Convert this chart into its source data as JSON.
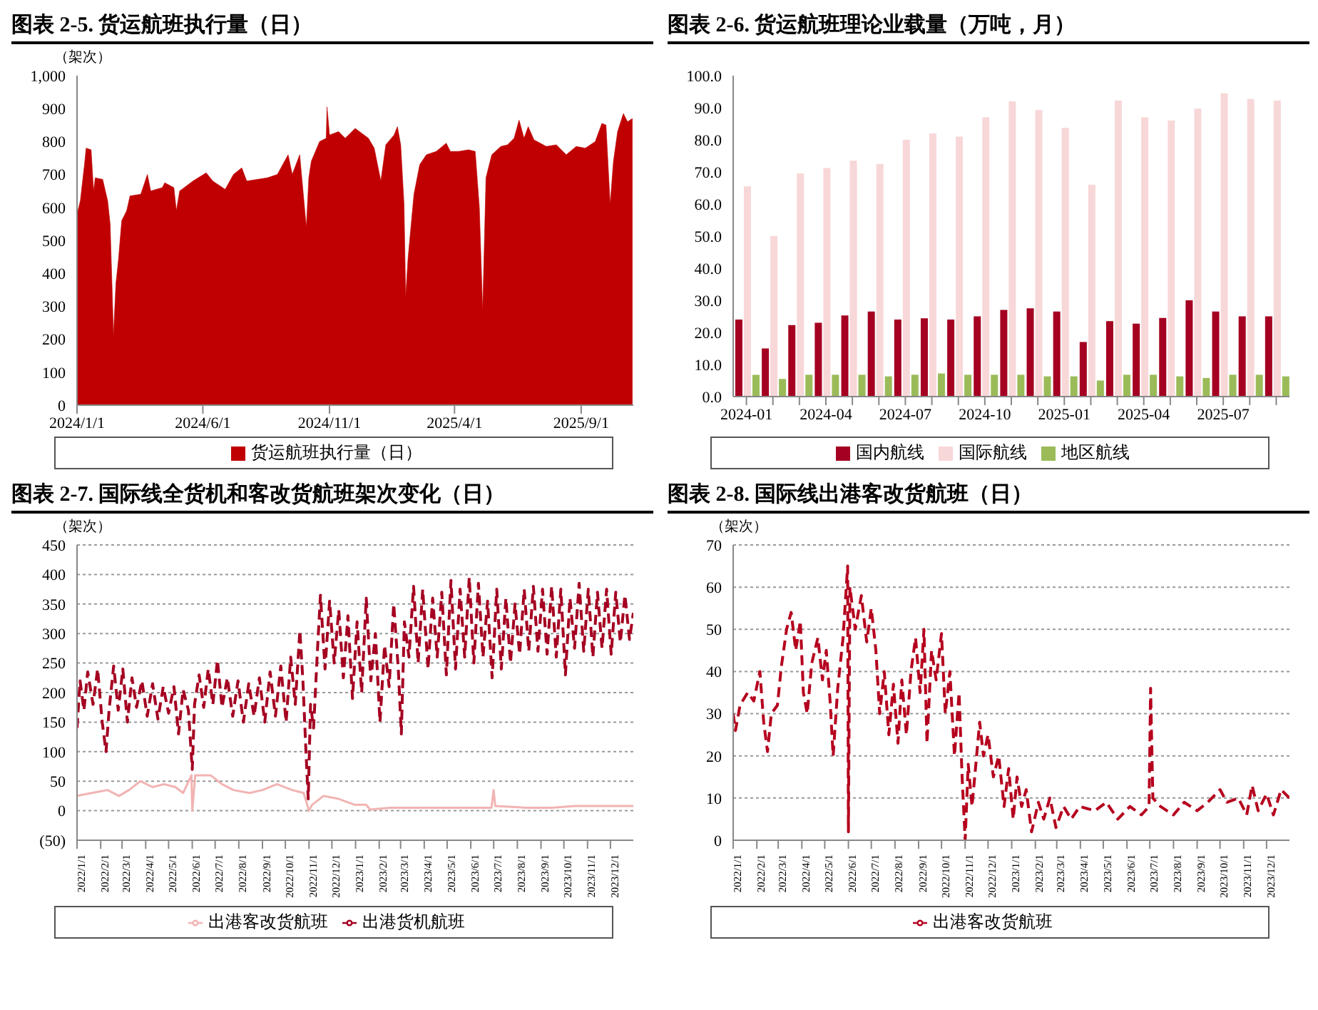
{
  "chart_data": [
    {
      "type": "area",
      "title": "图表 2-5. 货运航班执行量（日）",
      "ylabel": "（架次）",
      "legend": "bottom",
      "x": [
        "2024-01-01",
        "2024-01-05",
        "2024-01-10",
        "2024-01-12",
        "2024-01-18",
        "2024-01-21",
        "2024-01-23",
        "2024-02-01",
        "2024-02-07",
        "2024-02-10",
        "2024-02-13",
        "2024-02-14",
        "2024-02-17",
        "2024-02-20",
        "2024-02-24",
        "2024-03-01",
        "2024-03-05",
        "2024-03-18",
        "2024-03-26",
        "2024-03-30",
        "2024-04-13",
        "2024-04-16",
        "2024-04-27",
        "2024-04-30",
        "2024-05-04",
        "2024-05-20",
        "2024-06-05",
        "2024-06-13",
        "2024-06-28",
        "2024-07-08",
        "2024-07-18",
        "2024-07-24",
        "2024-08-18",
        "2024-08-30",
        "2024-09-12",
        "2024-09-17",
        "2024-09-26",
        "2024-10-04",
        "2024-10-07",
        "2024-10-10",
        "2024-10-20",
        "2024-10-28",
        "2024-10-29",
        "2024-11-01",
        "2024-11-12",
        "2024-11-20",
        "2024-12-02",
        "2024-12-18",
        "2024-12-25",
        "2025-01-02",
        "2025-01-08",
        "2025-01-18",
        "2025-01-22",
        "2025-01-26",
        "2025-01-30",
        "2025-02-01",
        "2025-02-04",
        "2025-02-11",
        "2025-02-18",
        "2025-02-26",
        "2025-03-10",
        "2025-03-22",
        "2025-03-27",
        "2025-04-06",
        "2025-04-18",
        "2025-04-26",
        "2025-05-01",
        "2025-05-05",
        "2025-05-09",
        "2025-05-16",
        "2025-05-27",
        "2025-06-04",
        "2025-06-12",
        "2025-06-18",
        "2025-06-24",
        "2025-06-29",
        "2025-07-06",
        "2025-07-21",
        "2025-08-02",
        "2025-08-14",
        "2025-08-26",
        "2025-09-06",
        "2025-09-18",
        "2025-09-26",
        "2025-10-01",
        "2025-10-06",
        "2025-10-10",
        "2025-10-15",
        "2025-10-22",
        "2025-10-27",
        "2025-11-02"
      ],
      "series": [
        {
          "name": "货运航班执行量（日）",
          "color": "#c00000",
          "values": [
            580,
            620,
            730,
            780,
            775,
            650,
            690,
            685,
            620,
            550,
            300,
            210,
            370,
            440,
            560,
            590,
            635,
            640,
            700,
            650,
            660,
            675,
            660,
            590,
            650,
            680,
            705,
            680,
            655,
            700,
            720,
            680,
            690,
            700,
            760,
            700,
            760,
            540,
            690,
            740,
            800,
            810,
            905,
            820,
            830,
            810,
            840,
            810,
            780,
            680,
            790,
            820,
            845,
            790,
            610,
            330,
            450,
            640,
            730,
            760,
            770,
            795,
            770,
            770,
            775,
            770,
            600,
            285,
            690,
            760,
            785,
            790,
            810,
            865,
            810,
            845,
            805,
            785,
            790,
            760,
            785,
            780,
            800,
            855,
            850,
            610,
            740,
            830,
            885,
            860,
            870
          ]
        }
      ],
      "xlim": [
        "2024-01-01",
        "2025-11-03"
      ],
      "xticks": [
        {
          "value": "2024-01-01",
          "label": "2024/1/1"
        },
        {
          "value": "2024-06-01",
          "label": "2024/6/1"
        },
        {
          "value": "2024-11-01",
          "label": "2024/11/1"
        },
        {
          "value": "2025-04-01",
          "label": "2025/4/1"
        },
        {
          "value": "2025-09-01",
          "label": "2025/9/1"
        }
      ],
      "ylim": [
        0,
        1000
      ],
      "yticks": [
        0,
        100,
        200,
        300,
        400,
        500,
        600,
        700,
        800,
        900,
        {
          "value": 1000,
          "label": "1,000"
        }
      ]
    },
    {
      "type": "bar",
      "title": "图表 2-6. 货运航班理论业载量（万吨，月）",
      "legend": "bottom",
      "categories": [
        "2024-01",
        null,
        null,
        "2024-04",
        null,
        null,
        "2024-07",
        null,
        null,
        "2024-10",
        null,
        null,
        "2025-01",
        null,
        null,
        "2025-04",
        null,
        null,
        "2025-07",
        null,
        null
      ],
      "series": [
        {
          "name": "国内航线",
          "color": "#a50021",
          "values": [
            24,
            15,
            22.3,
            23,
            25.3,
            26.5,
            24,
            24.4,
            24,
            25,
            27,
            27.5,
            26.5,
            17,
            23.5,
            22.7,
            24.5,
            30,
            26.5,
            25,
            25
          ]
        },
        {
          "name": "国际航线",
          "color": "#f8d7d8",
          "values": [
            65.5,
            50,
            69.5,
            71.2,
            73.5,
            72.5,
            80,
            82,
            81,
            87,
            92,
            89.3,
            83.7,
            66,
            92.2,
            87,
            86,
            89.7,
            94.5,
            92.7,
            92.2
          ]
        },
        {
          "name": "地区航线",
          "color": "#9bbb59",
          "values": [
            6.8,
            5.5,
            6.8,
            6.8,
            6.8,
            6.3,
            6.8,
            7.2,
            6.8,
            6.8,
            6.8,
            6.3,
            6.3,
            5,
            6.8,
            6.8,
            6.3,
            5.8,
            6.8,
            6.8,
            6.3
          ]
        }
      ],
      "ylim": [
        0,
        100
      ],
      "yticks": [
        {
          "value": 0,
          "label": "0.0"
        },
        {
          "value": 10,
          "label": "10.0"
        },
        {
          "value": 20,
          "label": "20.0"
        },
        {
          "value": 30,
          "label": "30.0"
        },
        {
          "value": 40,
          "label": "40.0"
        },
        {
          "value": 50,
          "label": "50.0"
        },
        {
          "value": 60,
          "label": "60.0"
        },
        {
          "value": 70,
          "label": "70.0"
        },
        {
          "value": 80,
          "label": "80.0"
        },
        {
          "value": 90,
          "label": "90.0"
        },
        {
          "value": 100,
          "label": "100.0"
        }
      ]
    },
    {
      "type": "line",
      "title": "图表 2-7. 国际线全货机和客改货航班架次变化（日）",
      "ylabel": "（架次）",
      "legend": "bottom",
      "grid": "y",
      "series": [
        {
          "name": "出港货机航班",
          "color": "#a50021",
          "line_style": "dashed",
          "x": [
            "2022-01-01",
            "2022-01-05",
            "2022-01-10",
            "2022-01-15",
            "2022-01-22",
            "2022-01-28",
            "2022-02-03",
            "2022-02-08",
            "2022-02-12",
            "2022-02-18",
            "2022-02-24",
            "2022-03-02",
            "2022-03-08",
            "2022-03-14",
            "2022-03-20",
            "2022-03-27",
            "2022-04-03",
            "2022-04-10",
            "2022-04-17",
            "2022-04-24",
            "2022-05-01",
            "2022-05-08",
            "2022-05-14",
            "2022-05-20",
            "2022-05-27",
            "2022-06-01",
            "2022-06-04",
            "2022-06-10",
            "2022-06-16",
            "2022-06-22",
            "2022-06-28",
            "2022-07-04",
            "2022-07-10",
            "2022-07-17",
            "2022-07-24",
            "2022-07-31",
            "2022-08-07",
            "2022-08-14",
            "2022-08-21",
            "2022-08-28",
            "2022-09-04",
            "2022-09-11",
            "2022-09-18",
            "2022-09-25",
            "2022-10-02",
            "2022-10-08",
            "2022-10-14",
            "2022-10-20",
            "2022-10-24",
            "2022-10-28",
            "2022-10-31",
            "2022-11-03",
            "2022-11-07",
            "2022-11-12",
            "2022-11-16",
            "2022-11-22",
            "2022-11-28",
            "2022-12-04",
            "2022-12-10",
            "2022-12-16",
            "2022-12-22",
            "2022-12-28",
            "2023-01-03",
            "2023-01-09",
            "2023-01-15",
            "2023-01-21",
            "2023-01-27",
            "2023-02-02",
            "2023-02-08",
            "2023-02-14",
            "2023-02-20",
            "2023-02-26",
            "2023-03-02",
            "2023-03-06",
            "2023-03-12",
            "2023-03-18",
            "2023-03-24",
            "2023-03-30",
            "2023-04-06",
            "2023-04-12",
            "2023-04-18",
            "2023-04-24",
            "2023-04-30",
            "2023-05-06",
            "2023-05-12",
            "2023-05-18",
            "2023-05-24",
            "2023-05-30",
            "2023-06-05",
            "2023-06-11",
            "2023-06-17",
            "2023-06-23",
            "2023-06-29",
            "2023-07-05",
            "2023-07-11",
            "2023-07-17",
            "2023-07-23",
            "2023-07-29",
            "2023-08-04",
            "2023-08-10",
            "2023-08-16",
            "2023-08-22",
            "2023-08-28",
            "2023-09-03",
            "2023-09-09",
            "2023-09-15",
            "2023-09-21",
            "2023-09-27",
            "2023-10-03",
            "2023-10-09",
            "2023-10-15",
            "2023-10-21",
            "2023-10-27",
            "2023-11-02",
            "2023-11-08",
            "2023-11-14",
            "2023-11-20",
            "2023-11-26",
            "2023-12-02",
            "2023-12-08",
            "2023-12-14",
            "2023-12-20",
            "2023-12-26",
            "2023-12-31"
          ],
          "values": [
            140,
            220,
            170,
            235,
            180,
            240,
            150,
            100,
            170,
            245,
            170,
            240,
            150,
            225,
            175,
            220,
            160,
            215,
            155,
            210,
            165,
            210,
            130,
            205,
            170,
            70,
            180,
            230,
            175,
            240,
            180,
            255,
            175,
            225,
            160,
            220,
            150,
            215,
            160,
            225,
            150,
            235,
            160,
            245,
            150,
            260,
            180,
            305,
            220,
            100,
            20,
            180,
            140,
            270,
            365,
            240,
            355,
            250,
            340,
            225,
            330,
            190,
            320,
            200,
            360,
            220,
            300,
            150,
            280,
            210,
            350,
            240,
            130,
            320,
            260,
            380,
            250,
            375,
            240,
            360,
            260,
            370,
            230,
            390,
            240,
            375,
            260,
            395,
            250,
            385,
            260,
            355,
            225,
            375,
            240,
            360,
            250,
            350,
            265,
            375,
            270,
            380,
            270,
            375,
            265,
            380,
            260,
            375,
            230,
            360,
            275,
            385,
            270,
            375,
            260,
            370,
            275,
            375,
            265,
            370,
            285,
            365,
            290,
            335
          ]
        },
        {
          "name": "出港客改货航班",
          "color": "#f2b3b3",
          "line_style": "solid",
          "x": [
            "2022-01-01",
            "2022-01-20",
            "2022-02-10",
            "2022-02-25",
            "2022-03-10",
            "2022-03-25",
            "2022-04-10",
            "2022-04-25",
            "2022-05-10",
            "2022-05-20",
            "2022-05-31",
            "2022-06-01",
            "2022-06-05",
            "2022-06-25",
            "2022-07-10",
            "2022-07-25",
            "2022-08-15",
            "2022-09-01",
            "2022-09-20",
            "2022-10-10",
            "2022-10-25",
            "2022-11-01",
            "2022-11-05",
            "2022-11-20",
            "2022-12-10",
            "2022-12-31",
            "2023-01-15",
            "2023-01-20",
            "2023-02-15",
            "2023-03-15",
            "2023-04-15",
            "2023-05-15",
            "2023-06-15",
            "2023-06-28",
            "2023-07-01",
            "2023-07-03",
            "2023-08-15",
            "2023-09-15",
            "2023-10-15",
            "2023-11-15",
            "2023-12-31"
          ],
          "values": [
            25,
            30,
            35,
            25,
            35,
            50,
            40,
            45,
            40,
            30,
            60,
            0,
            60,
            60,
            45,
            35,
            30,
            35,
            45,
            35,
            30,
            0,
            10,
            25,
            20,
            10,
            10,
            2,
            5,
            5,
            5,
            5,
            5,
            5,
            35,
            8,
            5,
            5,
            8,
            8,
            8
          ]
        }
      ],
      "xlim": [
        "2022-01-01",
        "2023-12-31"
      ],
      "xticks": [
        {
          "value": "2022-01-01",
          "label": "2022/1/1"
        },
        {
          "value": "2022-02-01",
          "label": "2022/2/1"
        },
        {
          "value": "2022-03-01",
          "label": "2022/3/1"
        },
        {
          "value": "2022-04-01",
          "label": "2022/4/1"
        },
        {
          "value": "2022-05-01",
          "label": "2022/5/1"
        },
        {
          "value": "2022-06-01",
          "label": "2022/6/1"
        },
        {
          "value": "2022-07-01",
          "label": "2022/7/1"
        },
        {
          "value": "2022-08-01",
          "label": "2022/8/1"
        },
        {
          "value": "2022-09-01",
          "label": "2022/9/1"
        },
        {
          "value": "2022-10-01",
          "label": "2022/10/1"
        },
        {
          "value": "2022-11-01",
          "label": "2022/11/1"
        },
        {
          "value": "2022-12-01",
          "label": "2022/12/1"
        },
        {
          "value": "2023-01-01",
          "label": "2023/1/1"
        },
        {
          "value": "2023-02-01",
          "label": "2023/2/1"
        },
        {
          "value": "2023-03-01",
          "label": "2023/3/1"
        },
        {
          "value": "2023-04-01",
          "label": "2023/4/1"
        },
        {
          "value": "2023-05-01",
          "label": "2023/5/1"
        },
        {
          "value": "2023-06-01",
          "label": "2023/6/1"
        },
        {
          "value": "2023-07-01",
          "label": "2023/7/1"
        },
        {
          "value": "2023-08-01",
          "label": "2023/8/1"
        },
        {
          "value": "2023-09-01",
          "label": "2023/9/1"
        },
        {
          "value": "2023-10-01",
          "label": "2023/10/1"
        },
        {
          "value": "2023-11-01",
          "label": "2023/11/1"
        },
        {
          "value": "2023-12-01",
          "label": "2023/12/1"
        }
      ],
      "ylim": [
        -50,
        450
      ],
      "yticks": [
        {
          "value": -50,
          "label": "(50)"
        },
        0,
        50,
        100,
        150,
        200,
        250,
        300,
        350,
        400,
        450
      ]
    },
    {
      "type": "line",
      "title": "图表 2-8. 国际线出港客改货航班（日）",
      "ylabel": "（架次）",
      "legend": "bottom",
      "grid": "y",
      "line_style": "dashed",
      "x": [
        "2022-01-01",
        "2022-01-04",
        "2022-01-10",
        "2022-01-20",
        "2022-01-28",
        "2022-02-05",
        "2022-02-10",
        "2022-02-15",
        "2022-02-20",
        "2022-02-28",
        "2022-03-05",
        "2022-03-12",
        "2022-03-18",
        "2022-03-24",
        "2022-03-30",
        "2022-04-03",
        "2022-04-08",
        "2022-04-14",
        "2022-04-22",
        "2022-04-28",
        "2022-05-03",
        "2022-05-08",
        "2022-05-12",
        "2022-05-18",
        "2022-05-25",
        "2022-05-31",
        "2022-06-01",
        "2022-06-03",
        "2022-06-10",
        "2022-06-18",
        "2022-06-25",
        "2022-07-01",
        "2022-07-07",
        "2022-07-12",
        "2022-07-18",
        "2022-07-24",
        "2022-07-30",
        "2022-08-05",
        "2022-08-10",
        "2022-08-16",
        "2022-08-22",
        "2022-08-28",
        "2022-09-03",
        "2022-09-08",
        "2022-09-12",
        "2022-09-18",
        "2022-09-24",
        "2022-10-01",
        "2022-10-06",
        "2022-10-12",
        "2022-10-18",
        "2022-10-24",
        "2022-10-28",
        "2022-11-01",
        "2022-11-05",
        "2022-11-10",
        "2022-11-20",
        "2022-11-25",
        "2022-12-01",
        "2022-12-08",
        "2022-12-15",
        "2022-12-22",
        "2022-12-28",
        "2023-01-03",
        "2023-01-08",
        "2023-01-14",
        "2023-01-20",
        "2023-01-27",
        "2023-02-05",
        "2023-02-12",
        "2023-02-20",
        "2023-02-28",
        "2023-03-10",
        "2023-03-20",
        "2023-03-31",
        "2023-04-20",
        "2023-05-05",
        "2023-05-20",
        "2023-06-05",
        "2023-06-20",
        "2023-06-30",
        "2023-07-02",
        "2023-07-05",
        "2023-07-15",
        "2023-08-01",
        "2023-08-15",
        "2023-09-01",
        "2023-09-15",
        "2023-10-01",
        "2023-10-10",
        "2023-10-25",
        "2023-11-05",
        "2023-11-12",
        "2023-11-20",
        "2023-12-01",
        "2023-12-10",
        "2023-12-20",
        "2023-12-31"
      ],
      "series": [
        {
          "name": "出港客改货航班",
          "color": "#b5001e",
          "values": [
            30,
            26,
            32,
            35,
            33,
            40,
            28,
            21,
            30,
            32,
            41,
            50,
            54,
            45,
            52,
            35,
            30,
            42,
            48,
            38,
            45,
            33,
            20,
            36,
            48,
            65,
            2,
            60,
            50,
            58,
            47,
            55,
            45,
            30,
            40,
            25,
            37,
            23,
            38,
            25,
            40,
            48,
            35,
            50,
            23,
            45,
            38,
            49,
            30,
            40,
            20,
            35,
            15,
            0,
            18,
            8,
            28,
            20,
            25,
            15,
            20,
            8,
            17,
            5,
            15,
            8,
            12,
            2,
            9,
            5,
            10,
            3,
            8,
            5,
            8,
            7,
            9,
            5,
            8,
            6,
            8,
            36,
            10,
            8,
            6,
            9,
            7,
            9,
            12,
            9,
            10,
            6,
            13,
            7,
            11,
            6,
            12,
            10
          ]
        }
      ],
      "xlim": [
        "2022-01-01",
        "2023-12-31"
      ],
      "xticks": [
        {
          "value": "2022-01-01",
          "label": "2022/1/1"
        },
        {
          "value": "2022-02-01",
          "label": "2022/2/1"
        },
        {
          "value": "2022-03-01",
          "label": "2022/3/1"
        },
        {
          "value": "2022-04-01",
          "label": "2022/4/1"
        },
        {
          "value": "2022-05-01",
          "label": "2022/5/1"
        },
        {
          "value": "2022-06-01",
          "label": "2022/6/1"
        },
        {
          "value": "2022-07-01",
          "label": "2022/7/1"
        },
        {
          "value": "2022-08-01",
          "label": "2022/8/1"
        },
        {
          "value": "2022-09-01",
          "label": "2022/9/1"
        },
        {
          "value": "2022-10-01",
          "label": "2022/10/1"
        },
        {
          "value": "2022-11-01",
          "label": "2022/11/1"
        },
        {
          "value": "2022-12-01",
          "label": "2022/12/1"
        },
        {
          "value": "2023-01-01",
          "label": "2023/1/1"
        },
        {
          "value": "2023-02-01",
          "label": "2023/2/1"
        },
        {
          "value": "2023-03-01",
          "label": "2023/3/1"
        },
        {
          "value": "2023-04-01",
          "label": "2023/4/1"
        },
        {
          "value": "2023-05-01",
          "label": "2023/5/1"
        },
        {
          "value": "2023-06-01",
          "label": "2023/6/1"
        },
        {
          "value": "2023-07-01",
          "label": "2023/7/1"
        },
        {
          "value": "2023-08-01",
          "label": "2023/8/1"
        },
        {
          "value": "2023-09-01",
          "label": "2023/9/1"
        },
        {
          "value": "2023-10-01",
          "label": "2023/10/1"
        },
        {
          "value": "2023-11-01",
          "label": "2023/11/1"
        },
        {
          "value": "2023-12-01",
          "label": "2023/12/1"
        }
      ],
      "ylim": [
        0,
        70
      ],
      "yticks": [
        0,
        10,
        20,
        30,
        40,
        50,
        60,
        70
      ]
    }
  ]
}
